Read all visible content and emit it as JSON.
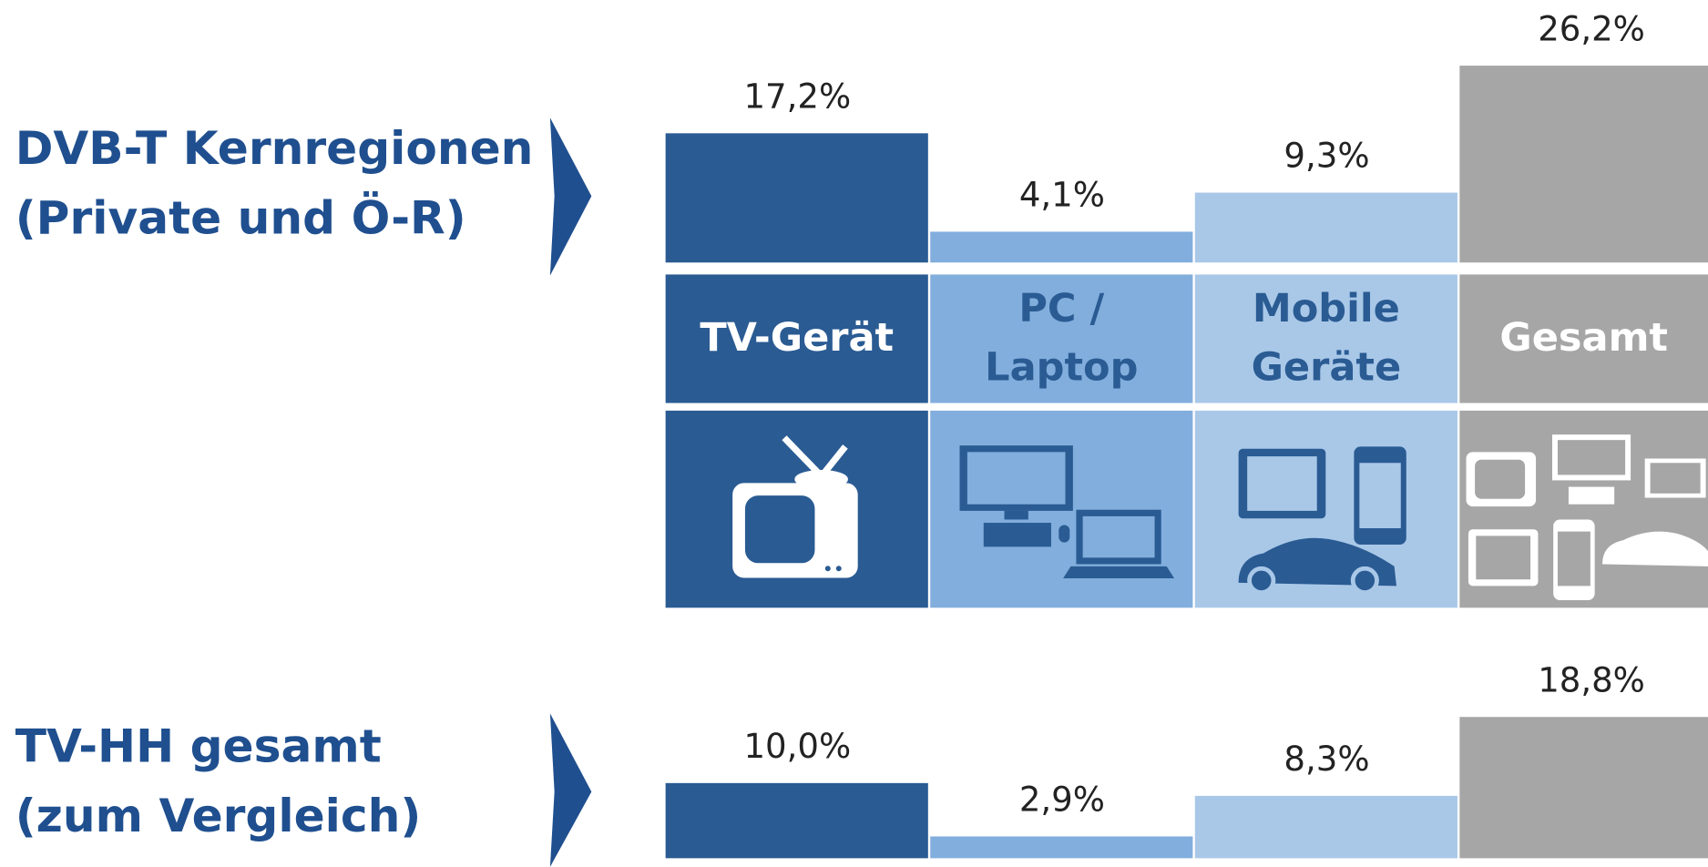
{
  "chart_data": [
    {
      "type": "bar",
      "title": "DVB-T Kernregionen",
      "subtitle": "(Private und Ö-R)",
      "categories": [
        "TV-Gerät",
        "PC /\nLaptop",
        "Mobile\nGeräte",
        "Gesamt"
      ],
      "values": [
        17.2,
        4.1,
        9.3,
        26.2
      ],
      "value_labels": [
        "17,2%",
        "4,1%",
        "9,3%",
        "26,2%"
      ],
      "colors": [
        "#2a5b93",
        "#82aedd",
        "#a9c8e8",
        "#a6a6a6"
      ]
    },
    {
      "type": "bar",
      "title": "TV-HH gesamt",
      "subtitle": "(zum Vergleich)",
      "values": [
        10.0,
        2.9,
        8.3,
        18.8
      ],
      "value_labels": [
        "10,0%",
        "2,9%",
        "8,3%",
        "18,8%"
      ],
      "colors": [
        "#2a5b93",
        "#82aedd",
        "#a9c8e8",
        "#a6a6a6"
      ]
    }
  ]
}
